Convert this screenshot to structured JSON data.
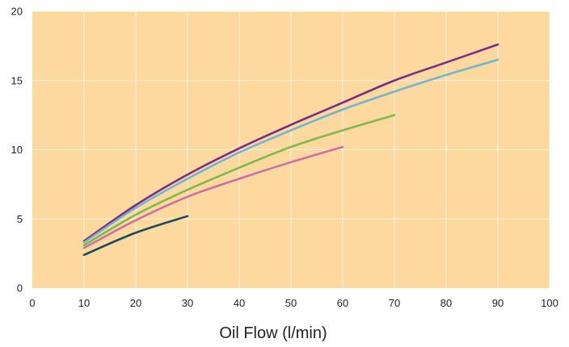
{
  "chart_data": {
    "type": "line",
    "title": "",
    "xlabel": "Oil Flow (l/min)",
    "ylabel": "",
    "xlim": [
      0,
      100
    ],
    "ylim": [
      0,
      20
    ],
    "x_ticks": [
      0,
      10,
      20,
      30,
      40,
      50,
      60,
      70,
      80,
      90,
      100
    ],
    "y_ticks": [
      0,
      5,
      10,
      15,
      20
    ],
    "grid": true,
    "legend": "none",
    "background_color": "#FDD9A0",
    "series": [
      {
        "color": "#7B2C87",
        "points": [
          [
            10,
            3.4
          ],
          [
            20,
            6.0
          ],
          [
            30,
            8.2
          ],
          [
            40,
            10.1
          ],
          [
            50,
            11.8
          ],
          [
            60,
            13.4
          ],
          [
            70,
            15.0
          ],
          [
            80,
            16.3
          ],
          [
            90,
            17.6
          ]
        ]
      },
      {
        "color": "#6FB7CC",
        "points": [
          [
            10,
            3.3
          ],
          [
            20,
            5.8
          ],
          [
            30,
            7.9
          ],
          [
            40,
            9.8
          ],
          [
            50,
            11.4
          ],
          [
            60,
            12.9
          ],
          [
            70,
            14.2
          ],
          [
            80,
            15.4
          ],
          [
            90,
            16.5
          ]
        ]
      },
      {
        "color": "#7DBA4A",
        "points": [
          [
            10,
            3.1
          ],
          [
            20,
            5.3
          ],
          [
            30,
            7.1
          ],
          [
            40,
            8.7
          ],
          [
            50,
            10.2
          ],
          [
            60,
            11.4
          ],
          [
            70,
            12.5
          ]
        ]
      },
      {
        "color": "#CC6FA6",
        "points": [
          [
            10,
            2.9
          ],
          [
            20,
            4.9
          ],
          [
            30,
            6.6
          ],
          [
            40,
            7.9
          ],
          [
            50,
            9.1
          ],
          [
            60,
            10.2
          ]
        ]
      },
      {
        "color": "#1B4A5E",
        "points": [
          [
            10,
            2.4
          ],
          [
            20,
            4.0
          ],
          [
            30,
            5.2
          ]
        ]
      }
    ]
  }
}
